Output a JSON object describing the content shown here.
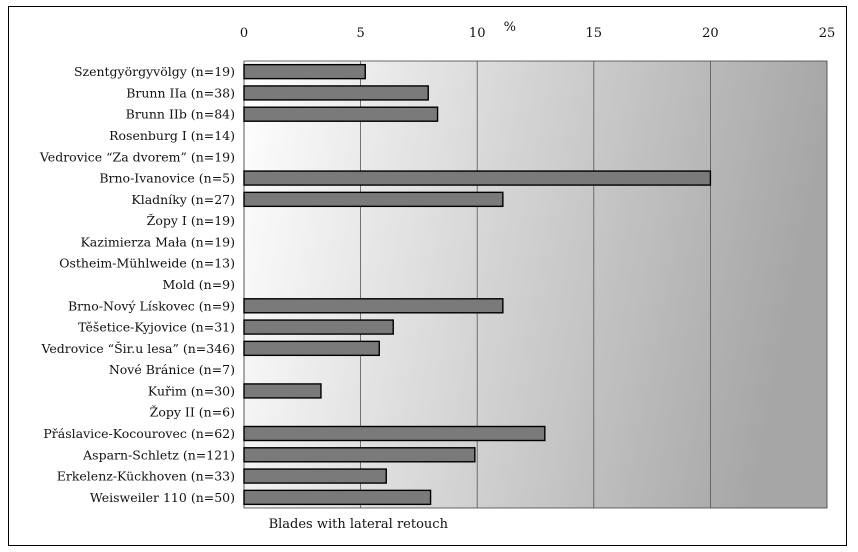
{
  "chart_data": {
    "type": "bar",
    "orientation": "horizontal",
    "title": "",
    "xlabel": "Blades with lateral retouch",
    "unit_label": "%",
    "xlim": [
      0,
      25
    ],
    "xticks": [
      0,
      5,
      10,
      15,
      20,
      25
    ],
    "grid": true,
    "categories": [
      "Szentgyörgyvölgy (n=19)",
      "Brunn IIa (n=38)",
      "Brunn IIb (n=84)",
      "Rosenburg I (n=14)",
      "Vedrovice “Za dvorem” (n=19)",
      "Brno-Ivanovice (n=5)",
      "Kladníky (n=27)",
      "Žopy I (n=19)",
      "Kazimierza Mała (n=19)",
      "Ostheim-Mühlweide (n=13)",
      "Mold (n=9)",
      "Brno-Nový Lískovec (n=9)",
      "Těšetice-Kyjovice (n=31)",
      "Vedrovice “Šir.u lesa” (n=346)",
      "Nové Bránice (n=7)",
      "Kuřim (n=30)",
      "Žopy II (n=6)",
      "Přáslavice-Kocourovec (n=62)",
      "Asparn-Schletz (n=121)",
      "Erkelenz-Kückhoven (n=33)",
      "Weisweiler 110 (n=50)"
    ],
    "values": [
      5.2,
      7.9,
      8.3,
      0,
      0,
      20.0,
      11.1,
      0,
      0,
      0,
      0,
      11.1,
      6.4,
      5.8,
      0,
      3.3,
      0,
      12.9,
      9.9,
      6.1,
      8.0
    ],
    "colors": {
      "bar_fill": "#7a7a7a",
      "bar_stroke": "#000000",
      "plot_gradient_light": "#ffffff",
      "plot_gradient_dark": "#a6a6a6",
      "gridline": "#555555"
    }
  }
}
